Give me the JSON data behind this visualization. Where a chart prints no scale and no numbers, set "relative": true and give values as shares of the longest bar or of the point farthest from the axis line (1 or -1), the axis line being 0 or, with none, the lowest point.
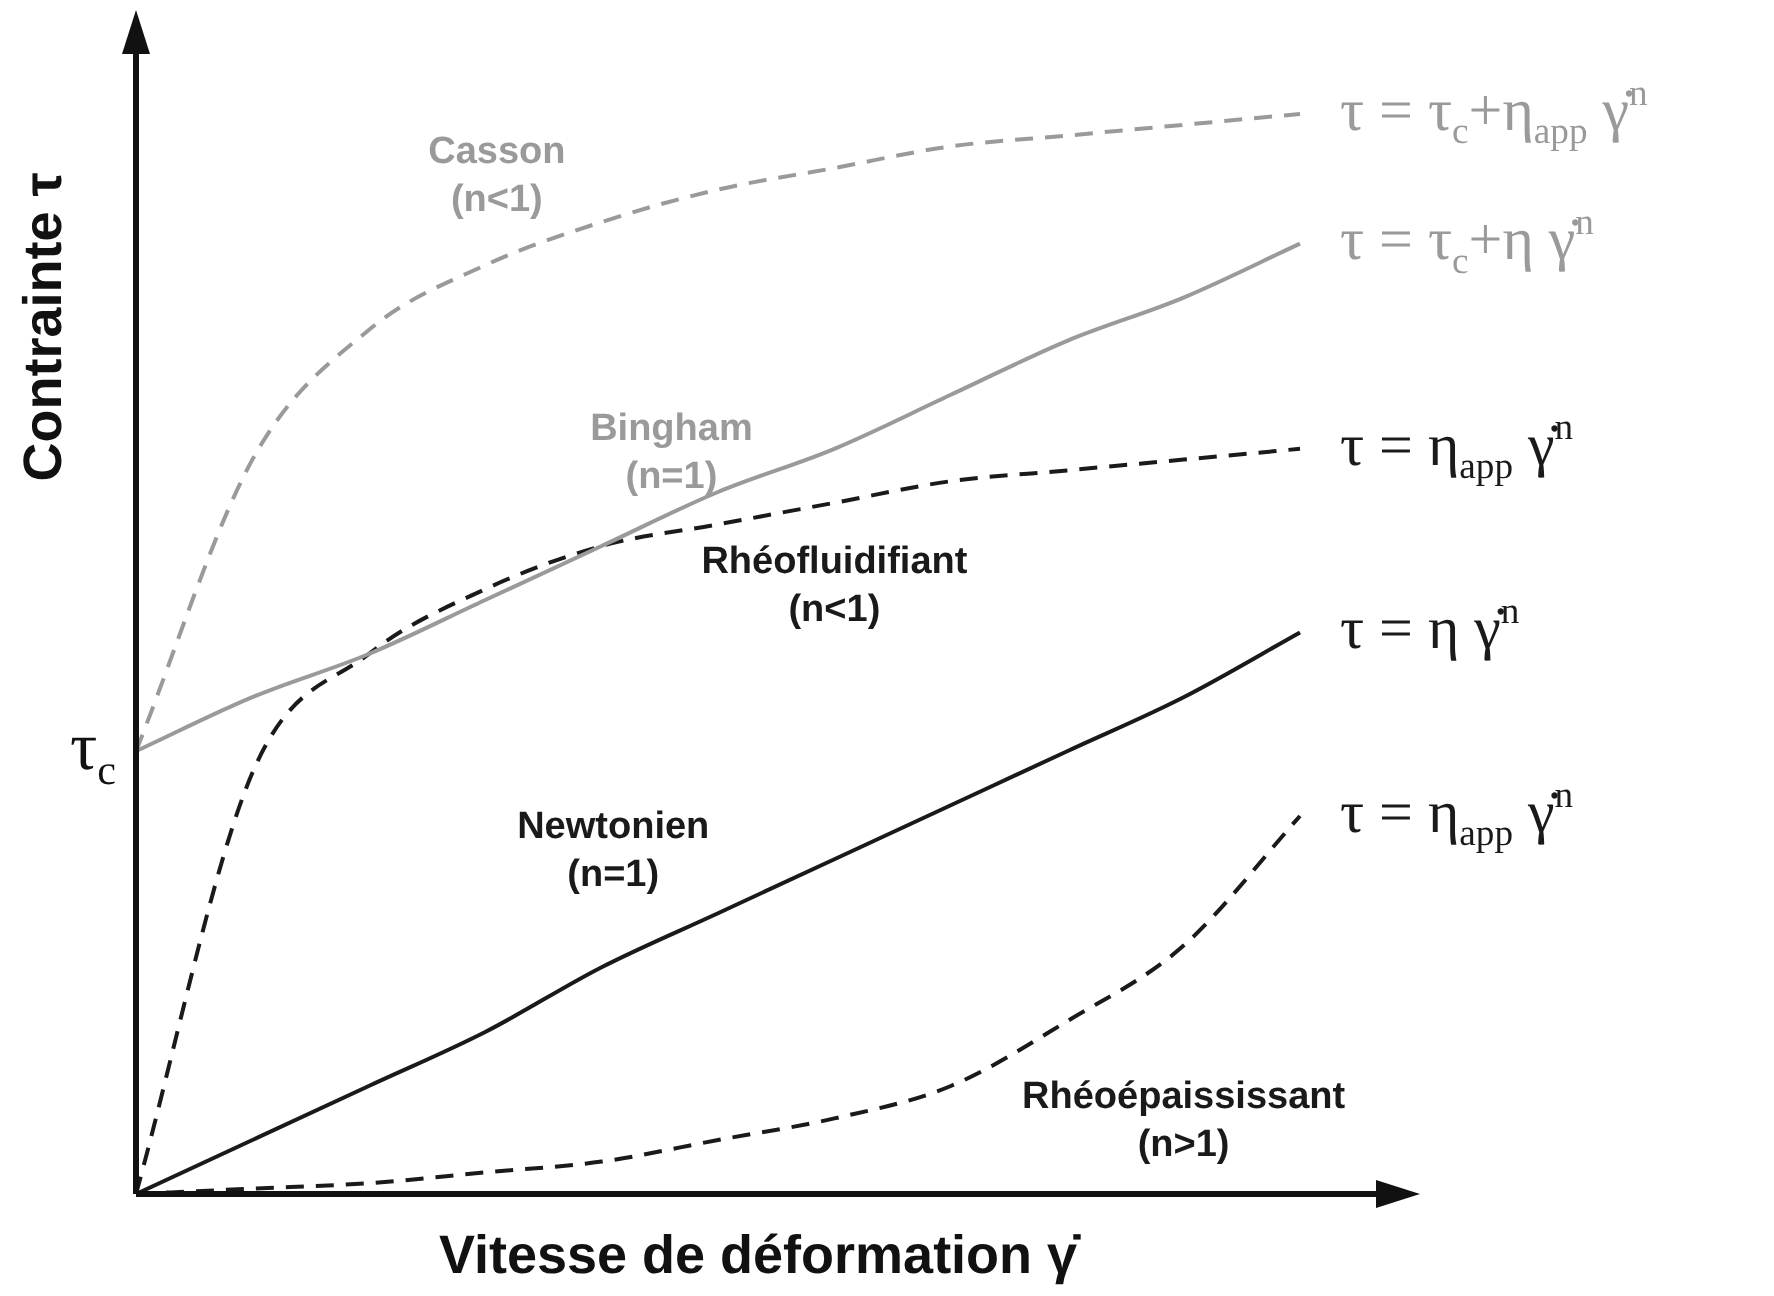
{
  "chart_data": {
    "type": "line",
    "relative": true,
    "xlabel": "Vitesse de déformation γ̇",
    "ylabel": "Contrainte τ",
    "categories": [
      null,
      null,
      null,
      null,
      null,
      null,
      null,
      null,
      null,
      null,
      null
    ],
    "legend": false,
    "marker": "none",
    "series": [
      {
        "name": "Casson (n<1)",
        "color": "#9a9a9a",
        "line_style": "dashed",
        "values": [
          0.41,
          0.68,
          0.8,
          0.86,
          0.9,
          0.93,
          0.95,
          0.97,
          0.98,
          0.99,
          1
        ]
      },
      {
        "name": "Bingham (n=1)",
        "color": "#9a9a9a",
        "line_style": "solid",
        "values": [
          0.41,
          0.46,
          0.5,
          0.55,
          0.6,
          0.65,
          0.69,
          0.74,
          0.79,
          0.83,
          0.88
        ]
      },
      {
        "name": "Rhéofluidifiant (n<1)",
        "color": "#1a1a1a",
        "line_style": "dashed",
        "values": [
          0,
          0.39,
          0.5,
          0.56,
          0.6,
          0.62,
          0.64,
          0.66,
          0.67,
          0.68,
          0.69
        ]
      },
      {
        "name": "Newtonien (n=1)",
        "color": "#1a1a1a",
        "line_style": "solid",
        "values": [
          0,
          0.05,
          0.1,
          0.15,
          0.21,
          0.26,
          0.31,
          0.36,
          0.41,
          0.46,
          0.52
        ]
      },
      {
        "name": "Rhéoépaississant (n>1)",
        "color": "#1a1a1a",
        "line_style": "dashed",
        "values": [
          0,
          0.005,
          0.01,
          0.02,
          0.03,
          0.05,
          0.07,
          0.1,
          0.16,
          0.23,
          0.35
        ]
      }
    ],
    "annotations": [
      "τ = τ$_{c}$+η$_{app}$ γ̇$^{n}$",
      "τ = τ$_{c}$+η γ̇$^{n}$",
      "τ = η$_{app}$ γ̇$^{n}$",
      "τ = η γ̇$^{n}$",
      "τ = η$_{app}$ γ̇$^{n}$",
      "τ$_{c}$"
    ]
  }
}
